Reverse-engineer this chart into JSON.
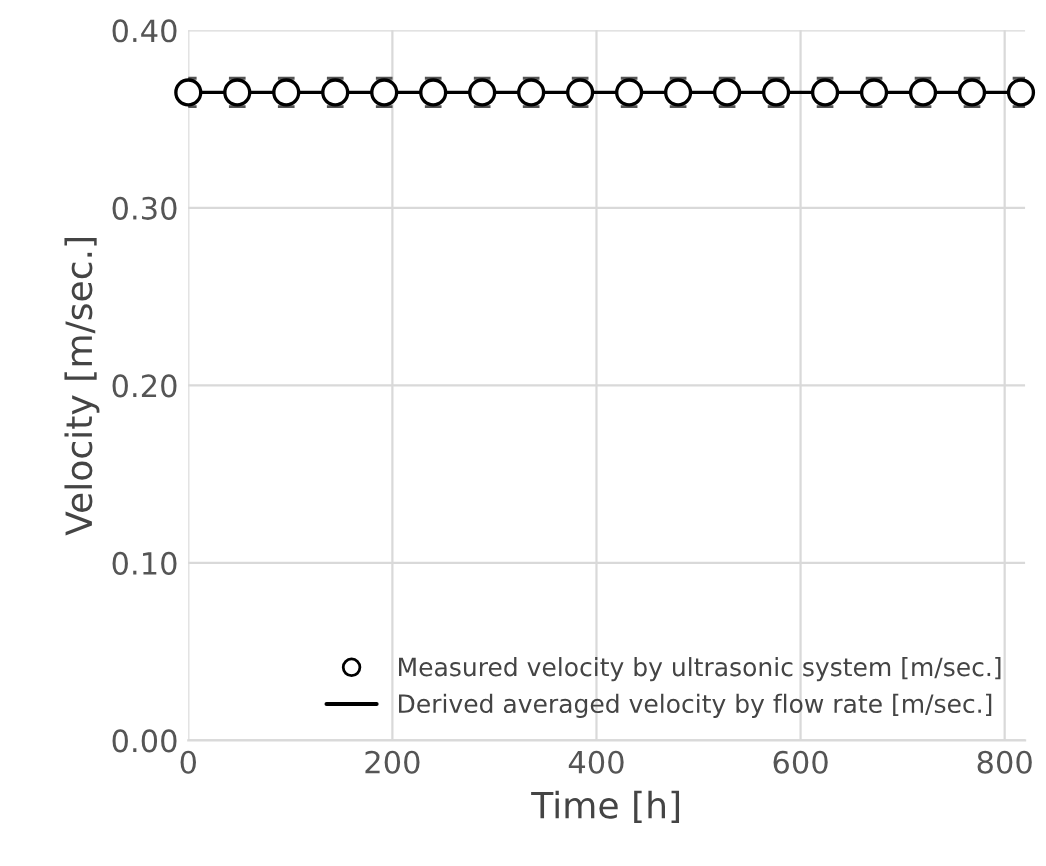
{
  "chart_data": {
    "type": "scatter",
    "xlabel": "Time [h]",
    "ylabel": "Velocity [m/sec.]",
    "x": [
      0,
      48,
      96,
      144,
      192,
      240,
      288,
      336,
      384,
      432,
      480,
      528,
      576,
      624,
      672,
      720,
      768,
      816
    ],
    "series": [
      {
        "name": "Measured velocity by ultrasonic system [m/sec.]",
        "color": "#000000",
        "marker": "circle",
        "values": [
          0.365,
          0.365,
          0.365,
          0.365,
          0.365,
          0.365,
          0.365,
          0.365,
          0.365,
          0.365,
          0.365,
          0.365,
          0.365,
          0.365,
          0.365,
          0.365,
          0.365,
          0.365
        ],
        "errors": [
          0.008,
          0.008,
          0.008,
          0.008,
          0.008,
          0.008,
          0.008,
          0.008,
          0.008,
          0.008,
          0.008,
          0.008,
          0.008,
          0.008,
          0.008,
          0.008,
          0.008,
          0.008
        ]
      },
      {
        "name": "Derived averaged velocity by flow rate [m/sec.]",
        "type": "line",
        "color": "#000000",
        "line_style": "solid",
        "values": [
          0.365,
          0.365,
          0.365,
          0.365,
          0.365,
          0.365,
          0.365,
          0.365,
          0.365,
          0.365,
          0.365,
          0.365,
          0.365,
          0.365,
          0.365,
          0.365,
          0.365,
          0.365
        ]
      }
    ],
    "xlim": [
      0,
      820
    ],
    "xticks": [
      0,
      200,
      400,
      600,
      800
    ],
    "ylim": [
      0,
      0.4
    ],
    "yticks": [
      {
        "value": 0,
        "label": "0.00"
      },
      {
        "value": 0.1,
        "label": "0.10"
      },
      {
        "value": 0.2,
        "label": "0.20"
      },
      {
        "value": 0.3,
        "label": "0.30"
      },
      {
        "value": 0.4,
        "label": "0.40"
      }
    ],
    "grid": true,
    "legend": "bottom right"
  }
}
